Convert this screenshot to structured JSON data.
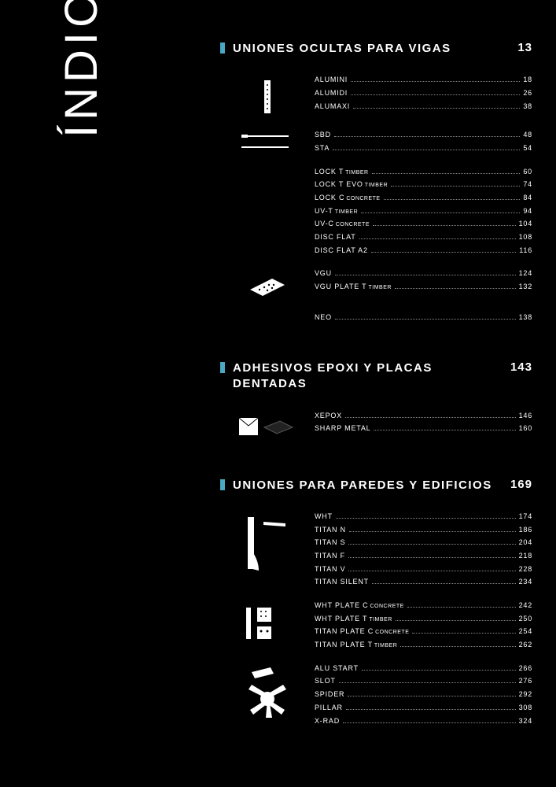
{
  "title": "ÍNDICE",
  "sections": [
    {
      "title": "UNIONES OCULTAS PARA VIGAS",
      "page": "13",
      "groups": [
        {
          "thumb": "plate-holes",
          "entries": [
            {
              "label": "ALUMINI",
              "page": "18"
            },
            {
              "label": "ALUMIDI",
              "page": "26"
            },
            {
              "label": "ALUMAXI",
              "page": "38"
            }
          ]
        },
        {
          "thumb": "rod",
          "entries": [
            {
              "label": "SBD",
              "page": "48"
            },
            {
              "label": "STA",
              "page": "54"
            }
          ]
        },
        {
          "thumb": "none",
          "entries": [
            {
              "label": "LOCK T",
              "sub": "TIMBER",
              "page": "60"
            },
            {
              "label": "LOCK T EVO",
              "sub": "TIMBER",
              "page": "74"
            },
            {
              "label": "LOCK C",
              "sub": "CONCRETE",
              "page": "84"
            },
            {
              "label": "UV-T",
              "sub": "TIMBER",
              "page": "94"
            },
            {
              "label": "UV-C",
              "sub": "CONCRETE",
              "page": "104"
            },
            {
              "label": "DISC FLAT",
              "page": "108"
            },
            {
              "label": "DISC FLAT A2",
              "page": "116"
            }
          ]
        },
        {
          "thumb": "iso-bracket",
          "entries": [
            {
              "label": "VGU",
              "page": "124"
            },
            {
              "label": "VGU PLATE T",
              "sub": "TIMBER",
              "page": "132"
            }
          ]
        },
        {
          "thumb": "none",
          "entries": [
            {
              "label": "NEO",
              "page": "138"
            }
          ]
        }
      ]
    },
    {
      "title": "ADHESIVOS EPOXI Y PLACAS DENTADAS",
      "page": "143",
      "groups": [
        {
          "thumb": "epoxy",
          "entries": [
            {
              "label": "XEPOX",
              "page": "146"
            },
            {
              "label": "SHARP METAL",
              "page": "160"
            }
          ]
        }
      ]
    },
    {
      "title": "UNIONES PARA PAREDES Y EDIFICIOS",
      "page": "169",
      "groups": [
        {
          "thumb": "titan",
          "entries": [
            {
              "label": "WHT",
              "page": "174"
            },
            {
              "label": "TITAN N",
              "page": "186"
            },
            {
              "label": "TITAN S",
              "page": "204"
            },
            {
              "label": "TITAN F",
              "page": "218"
            },
            {
              "label": "TITAN V",
              "page": "228"
            },
            {
              "label": "TITAN SILENT",
              "page": "234"
            }
          ]
        },
        {
          "thumb": "plates",
          "entries": [
            {
              "label": "WHT PLATE C",
              "sub": "CONCRETE",
              "page": "242"
            },
            {
              "label": "WHT PLATE T",
              "sub": "TIMBER",
              "page": "250"
            },
            {
              "label": "TITAN PLATE C",
              "sub": "CONCRETE",
              "page": "254"
            },
            {
              "label": "TITAN PLATE T",
              "sub": "TIMBER",
              "page": "262"
            }
          ]
        },
        {
          "thumb": "spider",
          "entries": [
            {
              "label": "ALU START",
              "page": "266"
            },
            {
              "label": "SLOT",
              "page": "276"
            },
            {
              "label": "SPIDER",
              "page": "292"
            },
            {
              "label": "PILLAR",
              "page": "308"
            },
            {
              "label": "X-RAD",
              "page": "324"
            }
          ]
        }
      ]
    }
  ],
  "colors": {
    "accent": "#4aa8c4",
    "bg": "#000000",
    "fg": "#ffffff"
  }
}
